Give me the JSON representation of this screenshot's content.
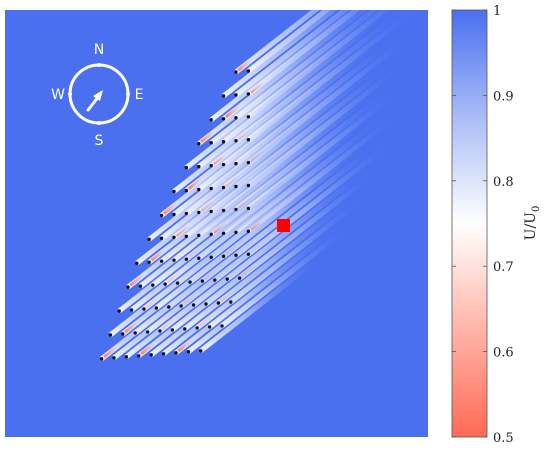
{
  "chart_data": {
    "type": "heatmap",
    "description_free": true,
    "colorbar": {
      "label": "U/U",
      "label_subscript": "0",
      "range": [
        0.5,
        1.0
      ],
      "ticks": [
        "1",
        "0.9",
        "0.8",
        "0.7",
        "0.6",
        "0.5"
      ],
      "tick_values": [
        1.0,
        0.9,
        0.8,
        0.7,
        0.6,
        0.5
      ],
      "colors": {
        "high": "#4a70f0",
        "mid": "#ffffff",
        "low": "#ff6a55"
      }
    },
    "field": {
      "background_value": 1.0,
      "wake_direction": "north-east",
      "min_wake_value": 0.62
    },
    "turbine_rows": [
      {
        "count": 2
      },
      {
        "count": 3
      },
      {
        "count": 4
      },
      {
        "count": 5
      },
      {
        "count": 6
      },
      {
        "count": 7
      },
      {
        "count": 8
      },
      {
        "count": 9
      },
      {
        "count": 10
      },
      {
        "count": 10
      },
      {
        "count": 10
      },
      {
        "count": 10
      },
      {
        "count": 9
      }
    ],
    "marker": {
      "shape": "square",
      "color": "#ff0000"
    },
    "compass": {
      "labels": {
        "north": "N",
        "south": "S",
        "east": "E",
        "west": "W"
      },
      "arrow_bearing_deg": 35,
      "color": "#ffffff"
    }
  }
}
